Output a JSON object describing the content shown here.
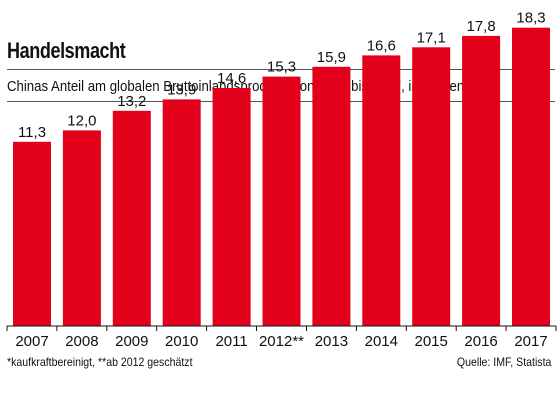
{
  "header": {
    "title": "Handelsmacht",
    "subtitle": "Chinas Anteil am globalen Bruttoinlandsprodukt* von 2007 bis 2017, in Prozent"
  },
  "footer": {
    "note": "*kaufkraftbereinigt, **ab 2012 geschätzt",
    "source": "Quelle: IMF, Statista"
  },
  "colors": {
    "bar": "#e2001a",
    "text": "#111111",
    "rule": "#555555"
  },
  "chart_data": {
    "type": "bar",
    "title": "Handelsmacht",
    "subtitle": "Chinas Anteil am globalen Bruttoinlandsprodukt* von 2007 bis 2017, in Prozent",
    "categories": [
      "2007",
      "2008",
      "2009",
      "2010",
      "2011",
      "2012**",
      "2013",
      "2014",
      "2015",
      "2016",
      "2017"
    ],
    "values": [
      11.3,
      12.0,
      13.2,
      13.9,
      14.6,
      15.3,
      15.9,
      16.6,
      17.1,
      17.8,
      18.3
    ],
    "data_labels": [
      "11,3",
      "12,0",
      "13,2",
      "13,9",
      "14,6",
      "15,3",
      "15,9",
      "16,6",
      "17,1",
      "17,8",
      "18,3"
    ],
    "xlabel": "",
    "ylabel": "",
    "ylim": [
      0,
      20
    ],
    "grid": false,
    "legend": "none",
    "y_axis_shown": false
  }
}
